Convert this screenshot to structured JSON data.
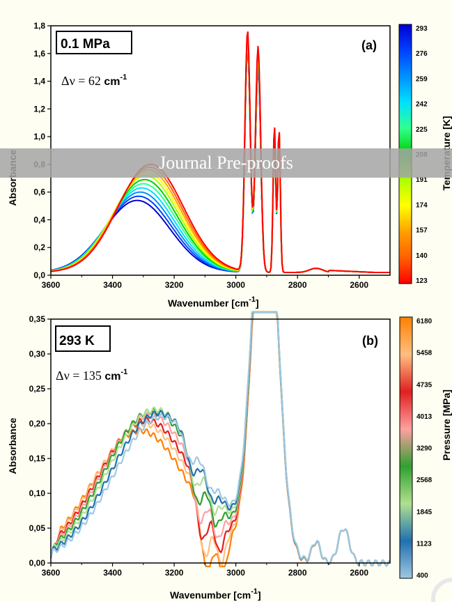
{
  "watermark": "Journal Pre-proofs",
  "chart_data": [
    {
      "type": "line",
      "panel_label": "(a)",
      "box_label": "0.1 MPa",
      "delta_label": "Δν = 62",
      "delta_unit": "cm",
      "delta_unit_sup": "-1",
      "xlabel": "Wavenumber [cm",
      "xlabel_sup": "-1",
      "xlabel_end": "]",
      "ylabel": "Absorbance",
      "xlim": [
        3600,
        2500
      ],
      "ylim": [
        0.0,
        1.8
      ],
      "x_ticks": [
        "3600",
        "3400",
        "3200",
        "3000",
        "2800",
        "2600"
      ],
      "y_ticks": [
        "0,0",
        "0,2",
        "0,4",
        "0,6",
        "0,8",
        "1,0",
        "1,2",
        "1,4",
        "1,6",
        "1,8"
      ],
      "colorbar": {
        "label": "Temperature [K]",
        "ticks": [
          "293",
          "276",
          "259",
          "242",
          "225",
          "208",
          "191",
          "174",
          "157",
          "140",
          "123"
        ],
        "colors": [
          "#0000d0",
          "#0040ff",
          "#0090ff",
          "#00e0ff",
          "#30ff90",
          "#00d000",
          "#b0ff00",
          "#ffff00",
          "#ffa000",
          "#ff6000",
          "#ff0000"
        ]
      },
      "series": [
        {
          "values": "temperature 293 → 123 K",
          "oh_peak_x": [
            3320,
            3315,
            3310,
            3305,
            3300,
            3296,
            3292,
            3288,
            3284,
            3280,
            3276
          ],
          "oh_peak_y": [
            0.52,
            0.55,
            0.58,
            0.61,
            0.64,
            0.67,
            0.7,
            0.72,
            0.74,
            0.76,
            0.78
          ]
        }
      ],
      "ch_peaks": {
        "x": [
          2962,
          2928,
          2875,
          2860
        ],
        "y_high_T": [
          1.64,
          1.47,
          1.0,
          0.98
        ],
        "y_low_T": [
          1.74,
          1.63,
          1.07,
          1.04
        ]
      }
    },
    {
      "type": "line",
      "panel_label": "(b)",
      "box_label": "293 K",
      "delta_label": "Δν = 135",
      "delta_unit": "cm",
      "delta_unit_sup": "-1",
      "xlabel": "Wavenumber [cm",
      "xlabel_sup": "-1",
      "xlabel_end": "]",
      "ylabel": "Absorbance",
      "xlim": [
        3600,
        2500
      ],
      "ylim": [
        0.0,
        0.35
      ],
      "x_ticks": [
        "3600",
        "3400",
        "3200",
        "3000",
        "2800",
        "2600"
      ],
      "y_ticks": [
        "0,00",
        "0,05",
        "0,10",
        "0,15",
        "0,20",
        "0,25",
        "0,30",
        "0,35"
      ],
      "colorbar": {
        "label": "Pressure [MPa]",
        "ticks": [
          "6180",
          "5458",
          "4735",
          "4013",
          "3290",
          "2568",
          "1845",
          "1123",
          "400"
        ],
        "colors": [
          "#ff8000",
          "#ffbf80",
          "#e02020",
          "#ffa0a0",
          "#30a030",
          "#b0e090",
          "#2070b0",
          "#a0c8e0"
        ]
      },
      "oh_peak_x": [
        3240,
        3250,
        3260,
        3270,
        3280,
        3290,
        3300,
        3310
      ],
      "oh_peak_y": [
        0.21,
        0.215,
        0.22,
        0.218,
        0.212,
        0.205,
        0.2,
        0.19
      ]
    }
  ]
}
